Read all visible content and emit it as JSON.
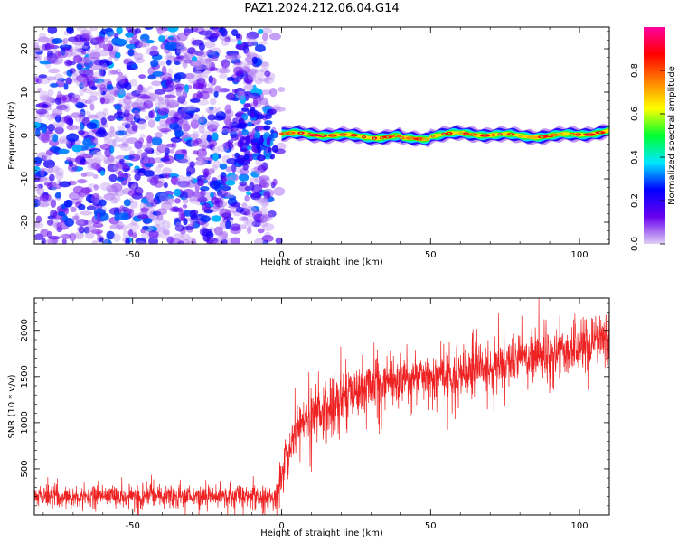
{
  "title": "PAZ1.2024.212.06.04.G14",
  "chart_data": [
    {
      "type": "heatmap",
      "xlabel": "Height of straight line (km)",
      "ylabel": "Frequency (Hz)",
      "xlim": [
        -83,
        110
      ],
      "ylim": [
        -25,
        25
      ],
      "xticks": [
        -50,
        0,
        50,
        100
      ],
      "yticks": [
        -20,
        -10,
        0,
        10,
        20
      ],
      "colorbar": {
        "label": "Normalized spectral amplitude",
        "range": [
          0,
          1
        ],
        "ticks": [
          "0.0",
          "0.2",
          "0.4",
          "0.6",
          "0.8"
        ],
        "colors": [
          "#e0d0f4",
          "#6a00f0",
          "#0000ff",
          "#00e8ff",
          "#00ff30",
          "#ffff00",
          "#ff8000",
          "#ff0000",
          "#ff00a0"
        ]
      },
      "noise_region": {
        "x": [
          -83,
          0
        ],
        "frequency": [
          -25,
          25
        ],
        "amplitude": "low (0.05-0.3)"
      },
      "signal_line": {
        "x": [
          0,
          110
        ],
        "frequency_center": 0,
        "frequency_range": [
          -1.5,
          2
        ],
        "amplitude": "0.5-0.9"
      }
    },
    {
      "type": "line",
      "xlabel": "Height of straight line (km)",
      "ylabel": "SNR (10 * v/v)",
      "xlim": [
        -83,
        110
      ],
      "ylim": [
        0,
        2350
      ],
      "xticks": [
        -50,
        0,
        50,
        100
      ],
      "yticks": [
        500,
        1000,
        1500,
        2000
      ],
      "series_color": "#ee2222",
      "envelope": {
        "x": [
          -83,
          -60,
          -40,
          -20,
          -2,
          0,
          5,
          10,
          15,
          20,
          30,
          40,
          50,
          60,
          70,
          80,
          90,
          100,
          110
        ],
        "mean": [
          200,
          200,
          200,
          200,
          200,
          450,
          950,
          1050,
          1150,
          1250,
          1400,
          1450,
          1500,
          1550,
          1600,
          1700,
          1750,
          1850,
          1950
        ],
        "noise": [
          80,
          80,
          80,
          80,
          80,
          150,
          200,
          220,
          220,
          200,
          180,
          170,
          170,
          170,
          170,
          170,
          180,
          180,
          200
        ]
      }
    }
  ]
}
